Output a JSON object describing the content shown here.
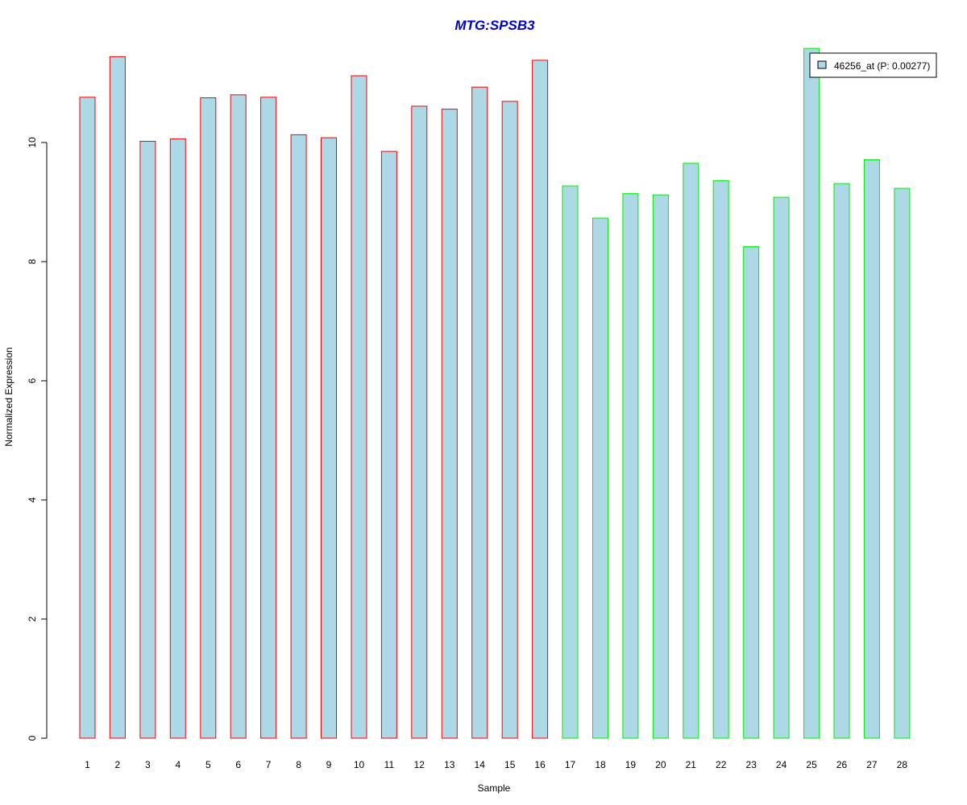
{
  "chart_data": {
    "type": "bar",
    "title": "MTG:SPSB3",
    "xlabel": "Sample",
    "ylabel": "Normalized Expression",
    "categories": [
      "1",
      "2",
      "3",
      "4",
      "5",
      "6",
      "7",
      "8",
      "9",
      "10",
      "11",
      "12",
      "13",
      "14",
      "15",
      "16",
      "17",
      "18",
      "19",
      "20",
      "21",
      "22",
      "23",
      "24",
      "25",
      "26",
      "27",
      "28"
    ],
    "series": [
      {
        "name": "46256_at (P: 0.00277)",
        "values": [
          10.76,
          11.44,
          10.02,
          10.06,
          10.75,
          10.8,
          10.76,
          10.13,
          10.08,
          11.12,
          9.85,
          10.61,
          10.56,
          10.93,
          10.69,
          11.38,
          9.27,
          8.73,
          9.14,
          9.12,
          9.65,
          9.36,
          8.25,
          9.08,
          11.58,
          9.31,
          9.71,
          9.23
        ]
      }
    ],
    "groups": [
      {
        "from": 1,
        "to": 16,
        "border_color": "#ff0000"
      },
      {
        "from": 17,
        "to": 28,
        "border_color": "#00ee00"
      }
    ],
    "bar_fill": "#add8e6",
    "title_color": "#0000cc",
    "yticks": [
      0,
      2,
      4,
      6,
      8,
      10
    ],
    "ylim": [
      0,
      11.6
    ],
    "grid": false,
    "legend_position": "top-right"
  }
}
